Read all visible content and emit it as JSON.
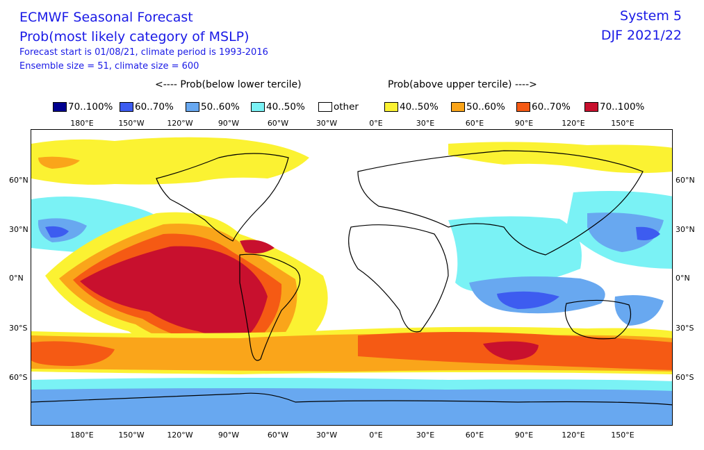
{
  "titles": {
    "line1": "ECMWF Seasonal Forecast",
    "line2": "Prob(most likely category of MSLP)",
    "line3": "Forecast start is 01/08/21, climate period is 1993-2016",
    "line4": "Ensemble size = 51, climate size = 600",
    "system": "System 5",
    "period": "DJF 2021/22"
  },
  "legend": {
    "below_header": "<---- Prob(below lower tercile)",
    "above_header": "Prob(above upper tercile) ---->",
    "items": [
      {
        "label": "70..100%",
        "color": "#00008f"
      },
      {
        "label": "60..70%",
        "color": "#3d5cf0"
      },
      {
        "label": "50..60%",
        "color": "#68a8f0"
      },
      {
        "label": "40..50%",
        "color": "#7af2f5"
      },
      {
        "label": "other",
        "color": "#ffffff"
      },
      {
        "label": "40..50%",
        "color": "#fbf232"
      },
      {
        "label": "50..60%",
        "color": "#faa51a"
      },
      {
        "label": "60..70%",
        "color": "#f55a14"
      },
      {
        "label": "70..100%",
        "color": "#c8102e"
      }
    ]
  },
  "axes": {
    "lon_labels": [
      "180°E",
      "150°W",
      "120°W",
      "90°W",
      "60°W",
      "30°W",
      "0°E",
      "30°E",
      "60°E",
      "90°E",
      "120°E",
      "150°E"
    ],
    "lat_labels": [
      "60°N",
      "30°N",
      "0°N",
      "30°S",
      "60°S"
    ]
  }
}
